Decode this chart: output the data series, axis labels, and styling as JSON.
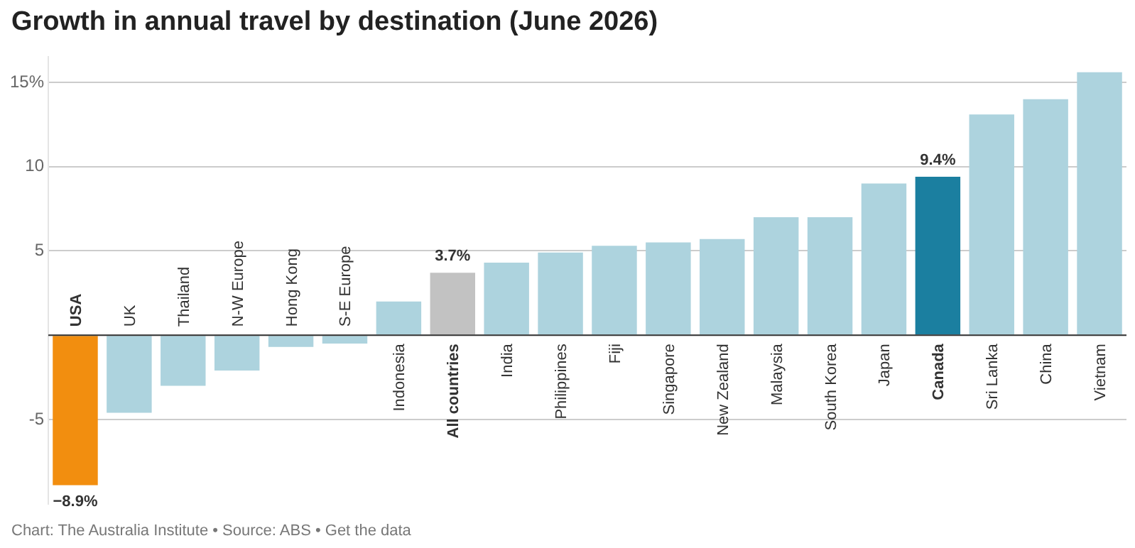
{
  "chart_data": {
    "type": "bar",
    "title": "Growth in annual travel by destination (June 2026)",
    "categories": [
      "USA",
      "UK",
      "Thailand",
      "N-W Europe",
      "Hong Kong",
      "S-E Europe",
      "Indonesia",
      "All countries",
      "India",
      "Philippines",
      "Fiji",
      "Singapore",
      "New Zealand",
      "Malaysia",
      "South Korea",
      "Japan",
      "Canada",
      "Sri Lanka",
      "China",
      "Vietnam"
    ],
    "values": [
      -8.9,
      -4.6,
      -3.0,
      -2.1,
      -0.7,
      -0.5,
      2.0,
      3.7,
      4.3,
      4.9,
      5.3,
      5.5,
      5.7,
      7.0,
      7.0,
      9.0,
      9.4,
      13.1,
      14.0,
      15.6
    ],
    "colors": [
      "#f28e0f",
      "#add3de",
      "#add3de",
      "#add3de",
      "#add3de",
      "#add3de",
      "#add3de",
      "#c2c2c2",
      "#add3de",
      "#add3de",
      "#add3de",
      "#add3de",
      "#add3de",
      "#add3de",
      "#add3de",
      "#add3de",
      "#1b7fa0",
      "#add3de",
      "#add3de",
      "#add3de"
    ],
    "value_labels": [
      "−8.9%",
      null,
      null,
      null,
      null,
      null,
      null,
      "3.7%",
      null,
      null,
      null,
      null,
      null,
      null,
      null,
      null,
      "9.4%",
      null,
      null,
      null
    ],
    "ylim": [
      -10,
      16.5
    ],
    "yticks": [
      -5,
      {
        "value": 0,
        "label": null
      },
      5,
      10,
      {
        "value": 15,
        "label": "15%"
      }
    ],
    "grid": "y",
    "legend": false,
    "annotations": [
      "Chart: The Australia Institute • Source: ABS • Get the data"
    ]
  }
}
